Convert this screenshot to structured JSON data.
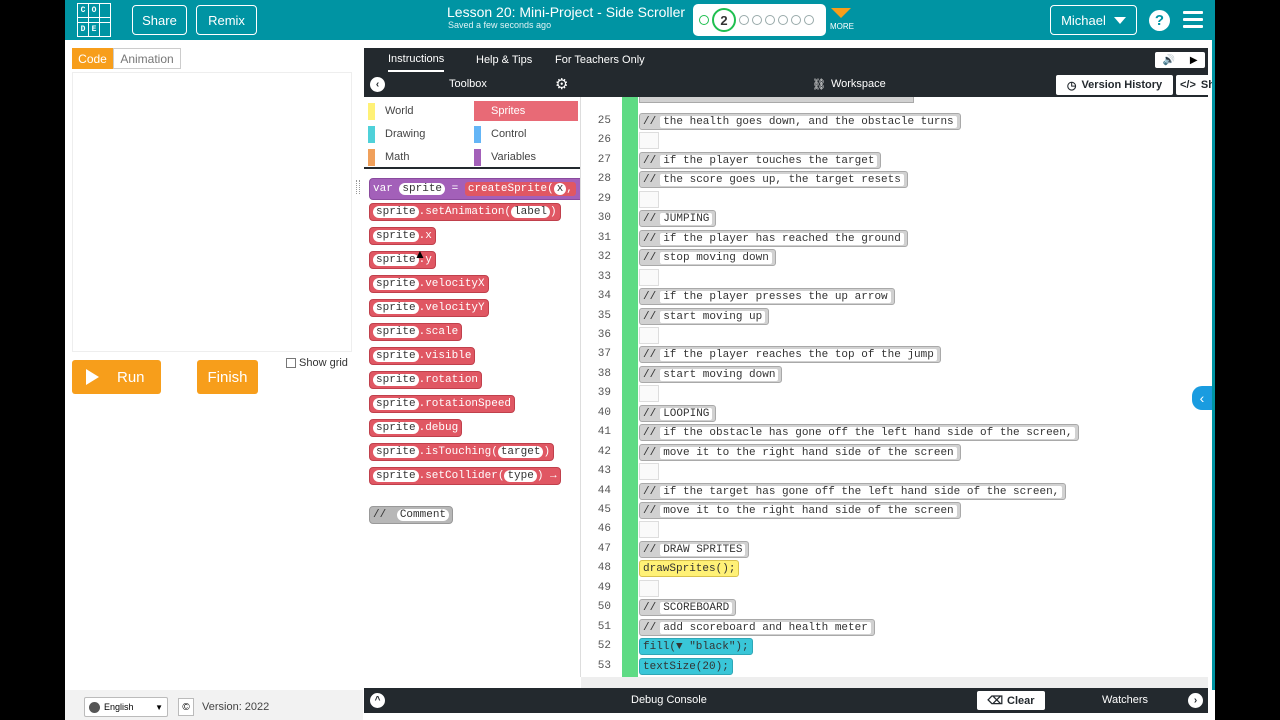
{
  "header": {
    "logo_letters": [
      "C",
      "O",
      "D",
      "E"
    ],
    "share_label": "Share",
    "remix_label": "Remix",
    "lesson_title": "Lesson 20: Mini-Project - Side Scroller",
    "saved_status": "Saved a few seconds ago",
    "progress_current": "2",
    "more_label": "MORE",
    "user_label": "Michael",
    "help_label": "?"
  },
  "left": {
    "tab_code": "Code",
    "tab_animation": "Animation",
    "run_label": "Run",
    "finish_label": "Finish",
    "show_grid_label": "Show grid",
    "language": "English",
    "copyright": "©",
    "version": "Version: 2022"
  },
  "instructions_bar": {
    "tabs": [
      "Instructions",
      "Help & Tips",
      "For Teachers Only"
    ]
  },
  "toolbox": {
    "title": "Toolbox",
    "categories": [
      "World",
      "Sprites",
      "Drawing",
      "Control",
      "Math",
      "Variables"
    ],
    "blocks": [
      {
        "obj": "sprite",
        "prop": ".setAnimation(",
        "arg": "label",
        "end": ")"
      },
      {
        "obj": "sprite",
        "prop": ".x",
        "arg": "",
        "end": ""
      },
      {
        "obj": "sprite",
        "prop": ".y",
        "arg": "",
        "end": ""
      },
      {
        "obj": "sprite",
        "prop": ".velocityX",
        "arg": "",
        "end": ""
      },
      {
        "obj": "sprite",
        "prop": ".velocityY",
        "arg": "",
        "end": ""
      },
      {
        "obj": "sprite",
        "prop": ".scale",
        "arg": "",
        "end": ""
      },
      {
        "obj": "sprite",
        "prop": ".visible",
        "arg": "",
        "end": ""
      },
      {
        "obj": "sprite",
        "prop": ".rotation",
        "arg": "",
        "end": ""
      },
      {
        "obj": "sprite",
        "prop": ".rotationSpeed",
        "arg": "",
        "end": ""
      },
      {
        "obj": "sprite",
        "prop": ".debug",
        "arg": "",
        "end": ""
      },
      {
        "obj": "sprite",
        "prop": ".isTouching(",
        "arg": "target",
        "end": ")"
      },
      {
        "obj": "sprite",
        "prop": ".setCollider(",
        "arg": "type",
        "end": ") →"
      }
    ],
    "var_block": {
      "kw": "var",
      "name": "sprite",
      "eq": "=",
      "fn": "createSprite(",
      "arg": "x",
      "tail": ","
    },
    "comment_block": {
      "slashes": "//",
      "text": "Comment"
    }
  },
  "workspace": {
    "title": "Workspace",
    "version_history": "Version History",
    "show_text": "Show Text"
  },
  "code_lines": [
    {
      "n": "25",
      "kind": "c",
      "text": "the health goes down, and the obstacle turns"
    },
    {
      "n": "26",
      "kind": "e",
      "text": ""
    },
    {
      "n": "27",
      "kind": "c",
      "text": "if the player touches the target"
    },
    {
      "n": "28",
      "kind": "c",
      "text": "the score goes up, the target resets"
    },
    {
      "n": "29",
      "kind": "e",
      "text": ""
    },
    {
      "n": "30",
      "kind": "c",
      "text": "JUMPING"
    },
    {
      "n": "31",
      "kind": "c",
      "text": "if the player has reached the ground"
    },
    {
      "n": "32",
      "kind": "c",
      "text": "stop moving down"
    },
    {
      "n": "33",
      "kind": "e",
      "text": ""
    },
    {
      "n": "34",
      "kind": "c",
      "text": "if the player presses the up arrow"
    },
    {
      "n": "35",
      "kind": "c",
      "text": "start moving up"
    },
    {
      "n": "36",
      "kind": "e",
      "text": ""
    },
    {
      "n": "37",
      "kind": "c",
      "text": "if the player reaches the top of the jump"
    },
    {
      "n": "38",
      "kind": "c",
      "text": "start moving down"
    },
    {
      "n": "39",
      "kind": "e",
      "text": ""
    },
    {
      "n": "40",
      "kind": "c",
      "text": "LOOPING"
    },
    {
      "n": "41",
      "kind": "c",
      "text": "if the obstacle has gone off the left hand side of the screen,"
    },
    {
      "n": "42",
      "kind": "c",
      "text": "move it to the right hand side of the screen"
    },
    {
      "n": "43",
      "kind": "e",
      "text": ""
    },
    {
      "n": "44",
      "kind": "c",
      "text": "if the target has gone off the left hand side of the screen,"
    },
    {
      "n": "45",
      "kind": "c",
      "text": "move it to the right hand side of the screen"
    },
    {
      "n": "46",
      "kind": "e",
      "text": ""
    },
    {
      "n": "47",
      "kind": "c",
      "text": "DRAW SPRITES"
    },
    {
      "n": "48",
      "kind": "y",
      "text": "drawSprites();"
    },
    {
      "n": "49",
      "kind": "e",
      "text": ""
    },
    {
      "n": "50",
      "kind": "c",
      "text": "SCOREBOARD"
    },
    {
      "n": "51",
      "kind": "c",
      "text": "add scoreboard and health meter"
    },
    {
      "n": "52",
      "kind": "b",
      "text": "fill(▼ \"black\");"
    },
    {
      "n": "53",
      "kind": "b",
      "text": "textSize(20);"
    }
  ],
  "comment_prefix": "//",
  "debug": {
    "console_label": "Debug Console",
    "clear_label": "Clear",
    "watchers_label": "Watchers"
  },
  "colors": {
    "brand_teal": "#0094a3",
    "accent_orange": "#f79e1b",
    "sprite_pink": "#e05763",
    "dark_bar": "#23292e"
  }
}
